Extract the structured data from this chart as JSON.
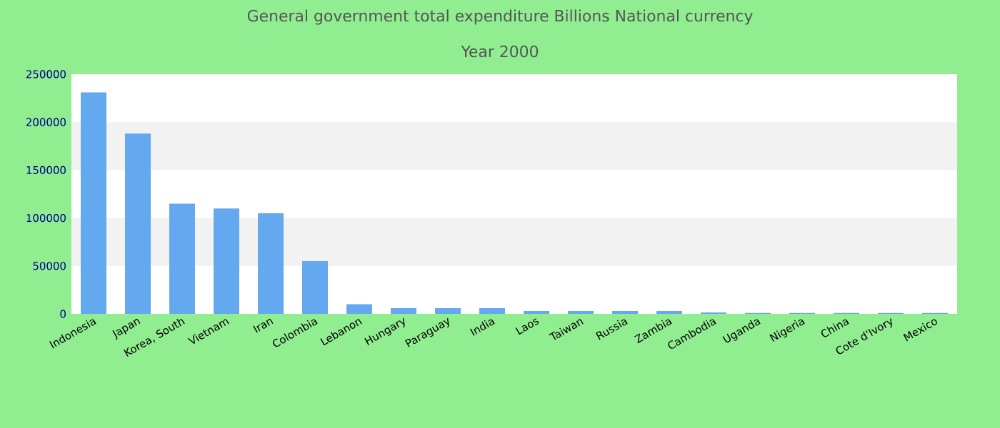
{
  "chart_data": {
    "type": "bar",
    "title": "General government total expenditure Billions National currency",
    "subtitle": "Year 2000",
    "categories": [
      "Indonesia",
      "Japan",
      "Korea, South",
      "Vietnam",
      "Iran",
      "Colombia",
      "Lebanon",
      "Hungary",
      "Paraguay",
      "India",
      "Laos",
      "Taiwan",
      "Russia",
      "Zambia",
      "Cambodia",
      "Uganda",
      "Nigeria",
      "China",
      "Cote d'Ivory",
      "Mexico"
    ],
    "values": [
      231000,
      188000,
      115000,
      110000,
      105000,
      55000,
      10000,
      6000,
      6000,
      6000,
      3000,
      3000,
      3000,
      3000,
      1500,
      1000,
      1000,
      1000,
      1000,
      1000
    ],
    "color": "#64a8f0",
    "ylim": [
      0,
      250000
    ],
    "yticks": [
      0,
      50000,
      100000,
      150000,
      200000,
      250000
    ],
    "bands": [
      {
        "axis": "y",
        "from": 50000,
        "to": 100000,
        "color": "#f2f2f2"
      },
      {
        "axis": "y",
        "from": 150000,
        "to": 200000,
        "color": "#f2f2f2"
      }
    ]
  }
}
